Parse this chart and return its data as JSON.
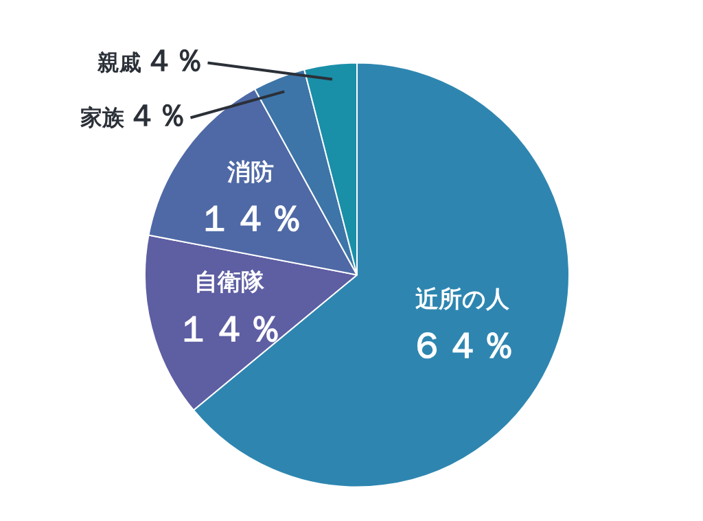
{
  "chart_data": {
    "type": "pie",
    "categories": [
      "近所の人",
      "自衛隊",
      "消防",
      "家族",
      "親戚"
    ],
    "values": [
      64,
      14,
      14,
      4,
      4
    ],
    "value_labels": [
      "６４％",
      "１４％",
      "１４％",
      "４％",
      "４％"
    ],
    "colors": [
      "#2e86b0",
      "#5e5ea3",
      "#4f69a6",
      "#3d75a8",
      "#1a8fa8"
    ]
  }
}
